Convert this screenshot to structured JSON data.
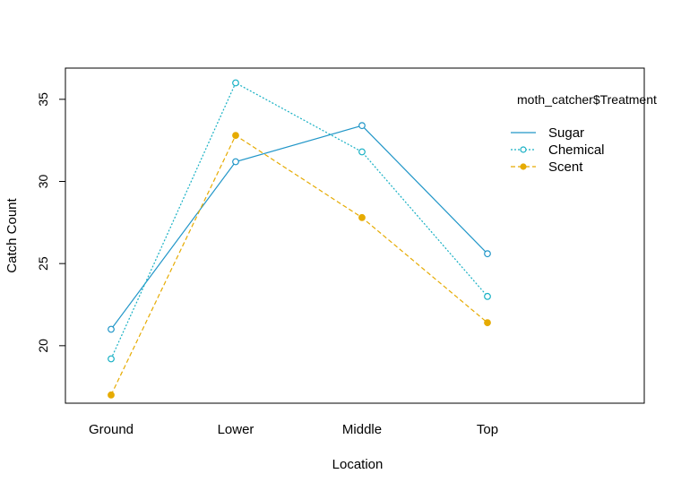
{
  "chart_data": {
    "type": "line",
    "categories": [
      "Ground",
      "Lower",
      "Middle",
      "Top"
    ],
    "xlabel": "Location",
    "ylabel": "Catch Count",
    "ylim": [
      16.5,
      36.9
    ],
    "yticks": [
      20,
      25,
      30,
      35
    ],
    "legend_title": "moth_catcher$Treatment",
    "legend_position": "top-right",
    "grid": false,
    "series": [
      {
        "name": "Sugar",
        "values": [
          21.0,
          31.2,
          33.4,
          25.6
        ],
        "color": "#2196c8",
        "line": "solid",
        "marker": "open-circle"
      },
      {
        "name": "Chemical",
        "values": [
          19.2,
          36.0,
          31.8,
          23.0
        ],
        "color": "#17b0c4",
        "line": "dotted",
        "marker": "open-circle"
      },
      {
        "name": "Scent",
        "values": [
          17.0,
          32.8,
          27.8,
          21.4
        ],
        "color": "#e6ab02",
        "line": "dashed",
        "marker": "filled-circle"
      }
    ]
  }
}
